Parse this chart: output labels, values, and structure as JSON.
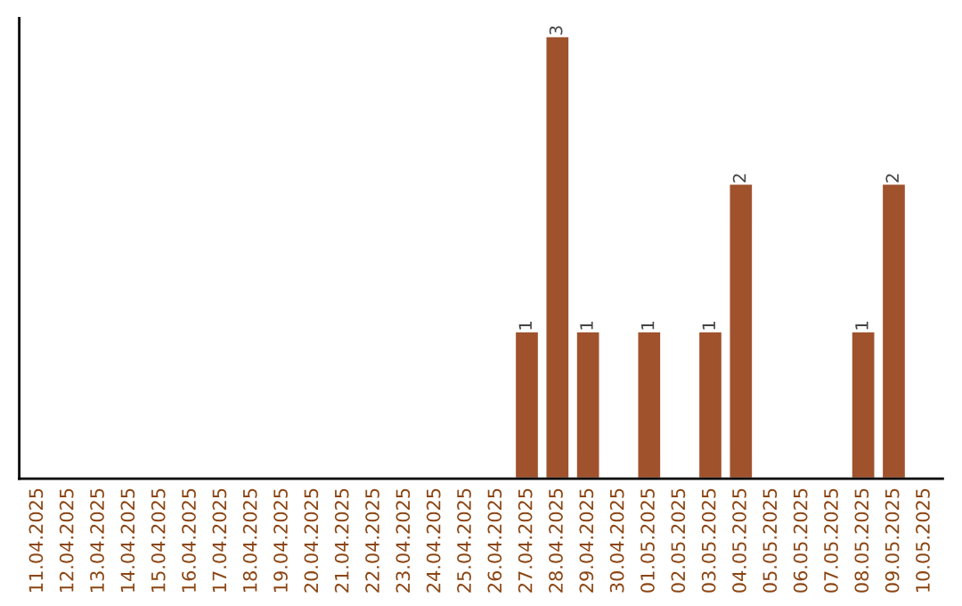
{
  "chart_data": {
    "type": "bar",
    "categories": [
      "11.04.2025",
      "12.04.2025",
      "13.04.2025",
      "14.04.2025",
      "15.04.2025",
      "16.04.2025",
      "17.04.2025",
      "18.04.2025",
      "19.04.2025",
      "20.04.2025",
      "21.04.2025",
      "22.04.2025",
      "23.04.2025",
      "24.04.2025",
      "25.04.2025",
      "26.04.2025",
      "27.04.2025",
      "28.04.2025",
      "29.04.2025",
      "30.04.2025",
      "01.05.2025",
      "02.05.2025",
      "03.05.2025",
      "04.05.2025",
      "05.05.2025",
      "06.05.2025",
      "07.05.2025",
      "08.05.2025",
      "09.05.2025",
      "10.05.2025"
    ],
    "values": [
      null,
      null,
      null,
      null,
      null,
      null,
      null,
      null,
      null,
      null,
      null,
      null,
      null,
      null,
      null,
      null,
      1,
      3,
      1,
      null,
      1,
      null,
      1,
      2,
      null,
      null,
      null,
      1,
      2,
      null
    ],
    "value_labels": [
      null,
      null,
      null,
      null,
      null,
      null,
      null,
      null,
      null,
      null,
      null,
      null,
      null,
      null,
      null,
      null,
      "1",
      "3",
      "1",
      null,
      "1",
      null,
      "1",
      "2",
      null,
      null,
      null,
      "1",
      "2",
      null
    ],
    "color": "#a0522d",
    "tick_labels": "x",
    "grid": false,
    "legend": false
  }
}
